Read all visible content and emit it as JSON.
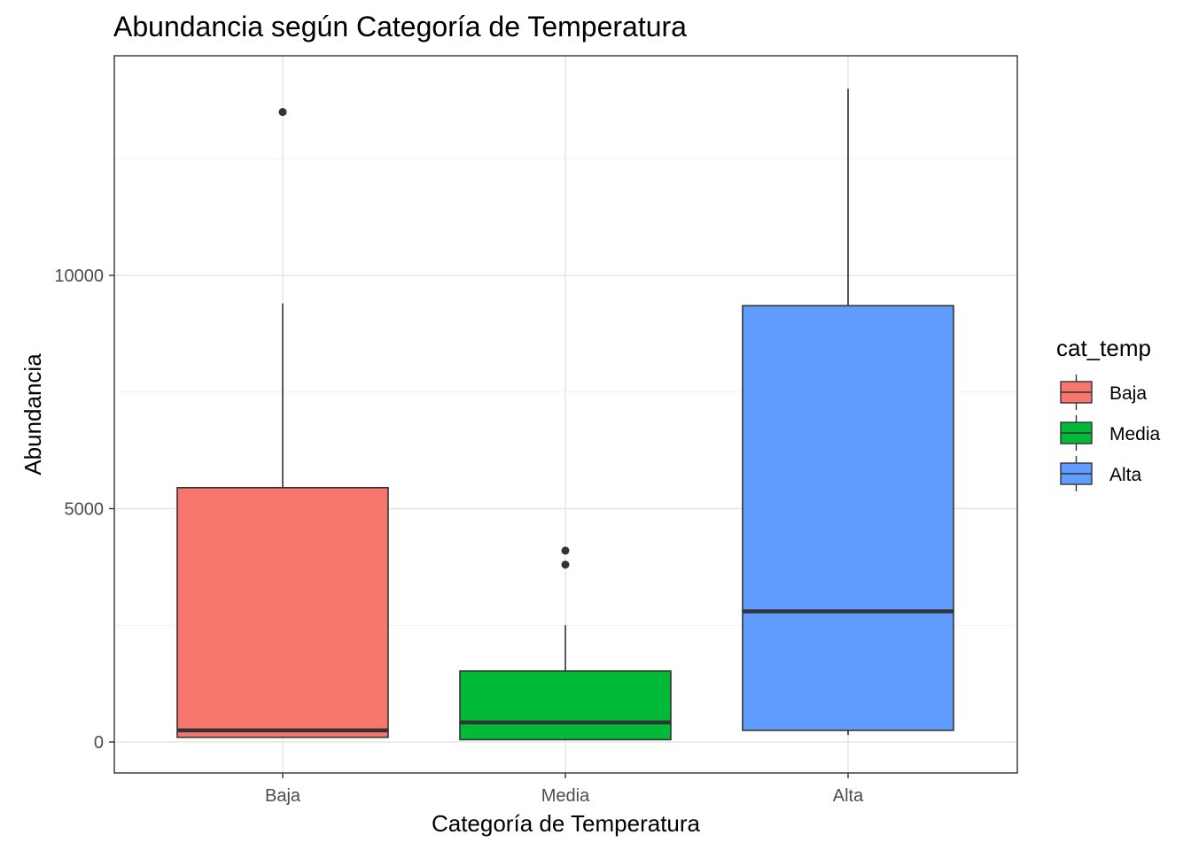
{
  "chart_data": {
    "type": "boxplot",
    "title": "Abundancia según Categoría de Temperatura",
    "xlabel": "Categoría de Temperatura",
    "ylabel": "Abundancia",
    "categories": [
      "Baja",
      "Media",
      "Alta"
    ],
    "yticks": [
      0,
      5000,
      10000
    ],
    "ylim": [
      -700,
      14300
    ],
    "grid": true,
    "legend": {
      "title": "cat_temp",
      "position": "right",
      "entries": [
        "Baja",
        "Media",
        "Alta"
      ]
    },
    "colors": {
      "Baja": "#f8766d",
      "Media": "#00ba38",
      "Alta": "#619cff"
    },
    "boxes": [
      {
        "category": "Baja",
        "min": 100,
        "q1": 100,
        "median": 250,
        "q3": 5450,
        "max": 9400,
        "outliers": [
          13500
        ]
      },
      {
        "category": "Media",
        "min": 50,
        "q1": 50,
        "median": 420,
        "q3": 1520,
        "max": 2500,
        "outliers": [
          3800,
          4100
        ]
      },
      {
        "category": "Alta",
        "min": 150,
        "q1": 250,
        "median": 2800,
        "q3": 9350,
        "max": 14000,
        "outliers": []
      }
    ]
  }
}
